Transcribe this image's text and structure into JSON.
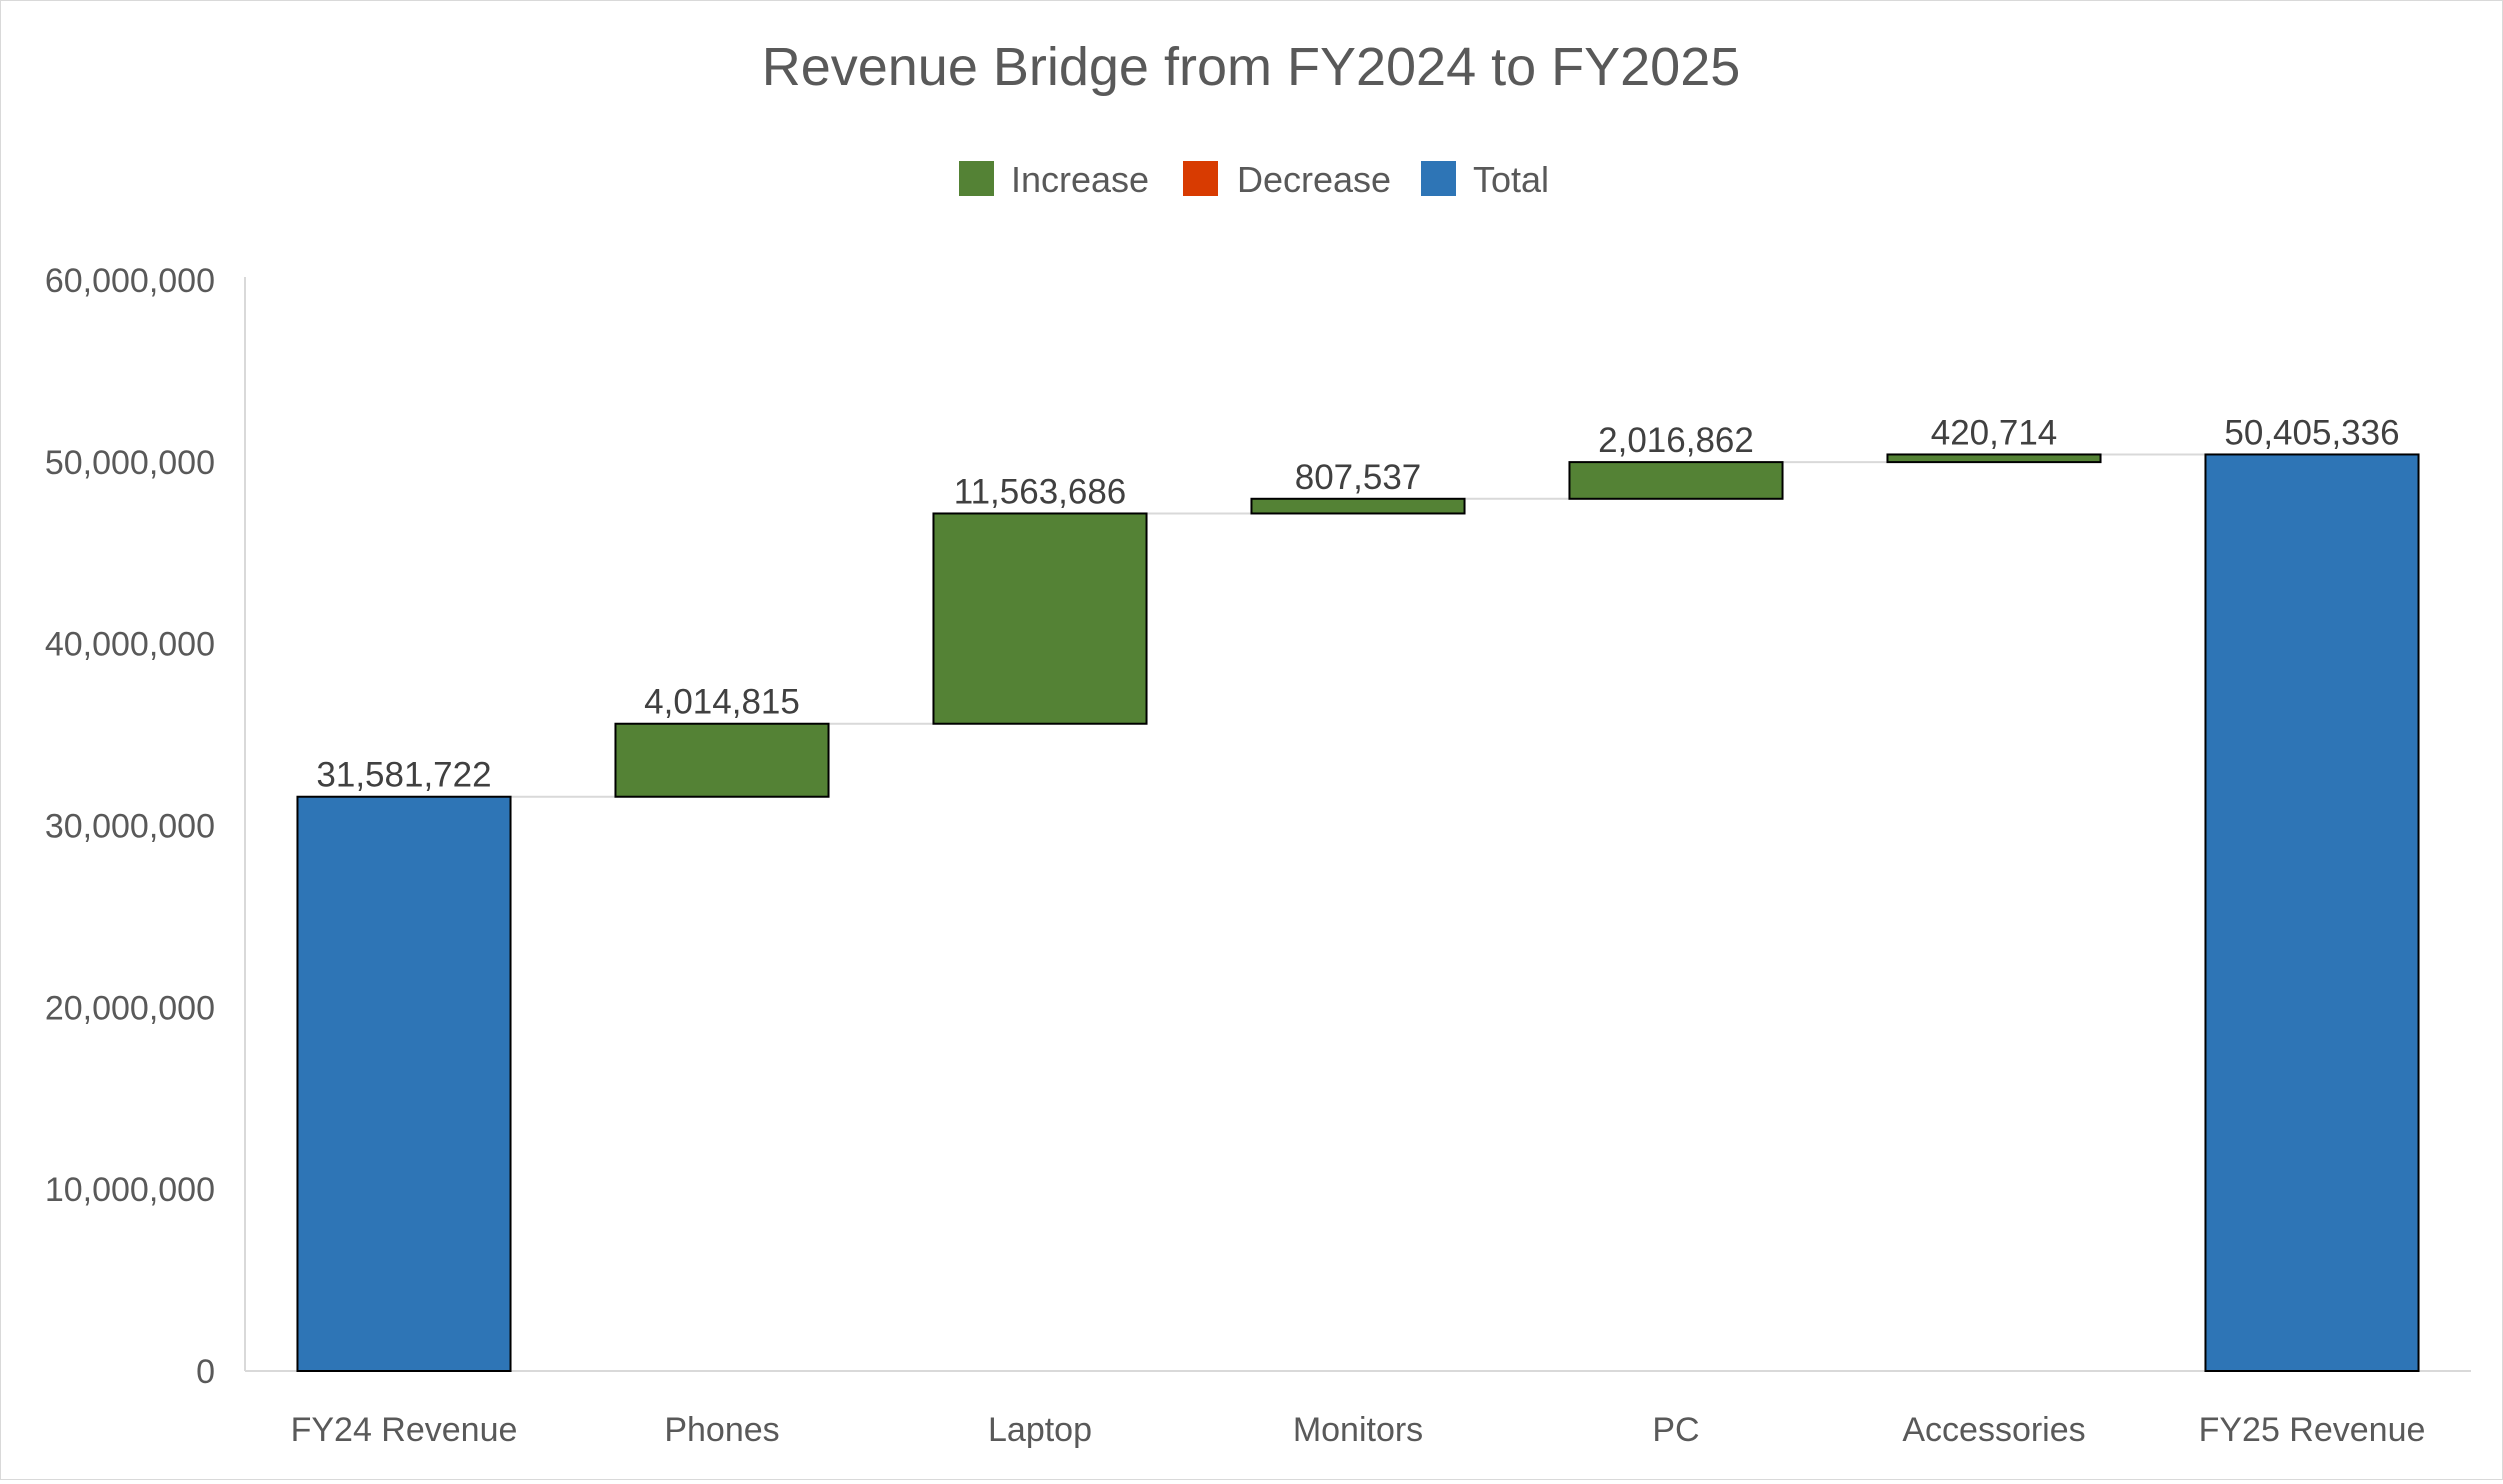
{
  "chart_data": {
    "type": "waterfall",
    "title": "Revenue Bridge from FY2024 to FY2025",
    "categories": [
      "FY24 Revenue",
      "Phones",
      "Laptop",
      "Monitors",
      "PC",
      "Accessories",
      "FY25 Revenue"
    ],
    "values": [
      31581722,
      4014815,
      11563686,
      807537,
      2016862,
      420714,
      50405336
    ],
    "kinds": [
      "total",
      "increase",
      "increase",
      "increase",
      "increase",
      "increase",
      "total"
    ],
    "data_labels": [
      "31,581,722",
      "4,014,815",
      "11,563,686",
      "807,537",
      "2,016,862",
      "420,714",
      "50,405,336"
    ],
    "legend": [
      {
        "name": "Increase",
        "color": "#548235"
      },
      {
        "name": "Decrease",
        "color": "#d83b01"
      },
      {
        "name": "Total",
        "color": "#2e75b6"
      }
    ],
    "legend_position": "top",
    "y_ticks": [
      0,
      10000000,
      20000000,
      30000000,
      40000000,
      50000000,
      60000000
    ],
    "y_tick_labels": [
      "0",
      "10,000,000",
      "20,000,000",
      "30,000,000",
      "40,000,000",
      "50,000,000",
      "60,000,000"
    ],
    "ylim": [
      0,
      60000000
    ],
    "grid": false,
    "xlabel": "",
    "ylabel": ""
  }
}
